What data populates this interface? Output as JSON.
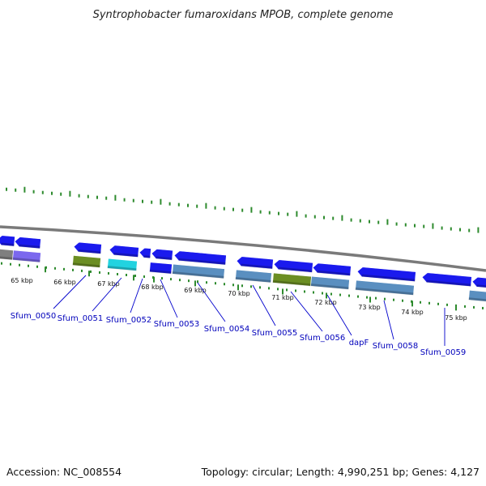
{
  "title": "Syntrophobacter fumaroxidans MPOB, complete genome",
  "footer": {
    "accession": "Accession: NC_008554",
    "summary": "Topology: circular; Length: 4,990,251 bp; Genes: 4,127"
  },
  "colors": {
    "backbone": "#7a7a7a",
    "tick": "#2e8b2e",
    "label_line": "#0000cc",
    "cds_blue": "#1a1aee",
    "steel": "#5a8fc0",
    "olive": "#6b8e23",
    "cyan": "#22d3e0",
    "purple": "#7b68ee",
    "gray": "#7f7f7f"
  },
  "scale_labels": [
    {
      "text": "65 kbp"
    },
    {
      "text": "66 kbp"
    },
    {
      "text": "67 kbp"
    },
    {
      "text": "68 kbp"
    },
    {
      "text": "69 kbp"
    },
    {
      "text": "70 kbp"
    },
    {
      "text": "71 kbp"
    },
    {
      "text": "72 kbp"
    },
    {
      "text": "73 kbp"
    },
    {
      "text": "74 kbp"
    },
    {
      "text": "75 kbp"
    }
  ],
  "gene_labels": [
    {
      "text": "Sfum_0050"
    },
    {
      "text": "Sfum_0051"
    },
    {
      "text": "Sfum_0052"
    },
    {
      "text": "Sfum_0053"
    },
    {
      "text": "Sfum_0054"
    },
    {
      "text": "Sfum_0055"
    },
    {
      "text": "Sfum_0056"
    },
    {
      "text": "dapF"
    },
    {
      "text": "Sfum_0058"
    },
    {
      "text": "Sfum_0059"
    }
  ]
}
